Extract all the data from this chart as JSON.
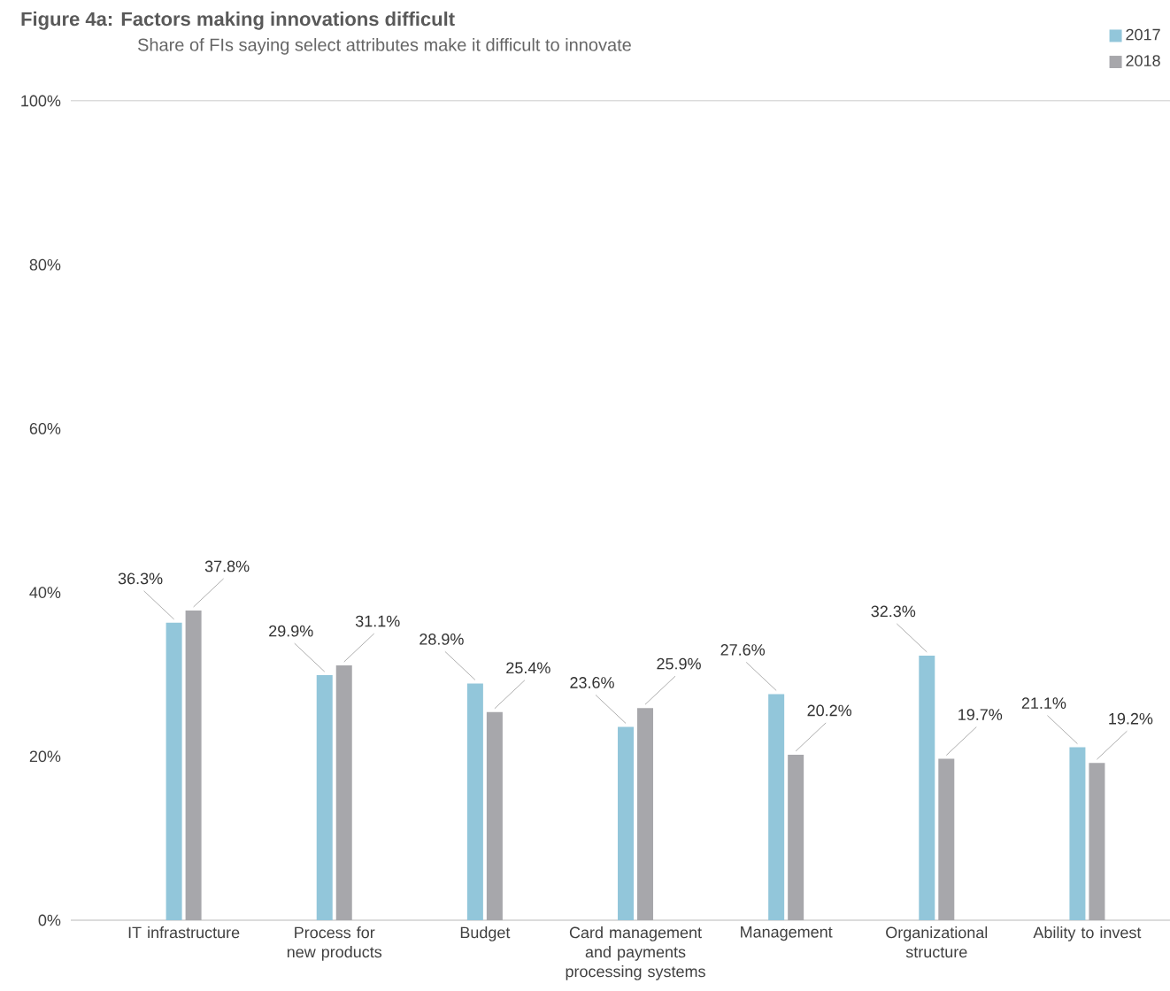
{
  "chart_data": {
    "type": "bar",
    "title": "Figure 4a: Factors making innovations difficult",
    "subtitle": "Share of FIs saying select attributes make it difficult to innovate",
    "categories": [
      "IT infrastructure",
      "Process for new products",
      "Budget",
      "Card management and payments processing systems",
      "Management",
      "Organizational structure",
      "Ability to invest"
    ],
    "series": [
      {
        "name": "2017",
        "color": "#92c6da",
        "values": [
          36.3,
          29.9,
          28.9,
          23.6,
          27.6,
          32.3,
          21.1
        ],
        "value_labels": [
          "36.3%",
          "29.9%",
          "28.9%",
          "23.6%",
          "27.6%",
          "32.3%",
          "21.1%"
        ]
      },
      {
        "name": "2018",
        "color": "#a7a7ab",
        "values": [
          37.8,
          31.1,
          25.4,
          25.9,
          20.2,
          19.7,
          19.2
        ],
        "value_labels": [
          "37.8%",
          "31.1%",
          "25.4%",
          "25.9%",
          "20.2%",
          "19.7%",
          "19.2%"
        ]
      }
    ],
    "ylim": [
      0,
      100
    ],
    "yticks": [
      {
        "value": 0,
        "label": "0%"
      },
      {
        "value": 20,
        "label": "20%"
      },
      {
        "value": 40,
        "label": "40%"
      },
      {
        "value": 60,
        "label": "60%"
      },
      {
        "value": 80,
        "label": "80%"
      },
      {
        "value": 100,
        "label": "100%"
      }
    ],
    "legend": "top right"
  }
}
